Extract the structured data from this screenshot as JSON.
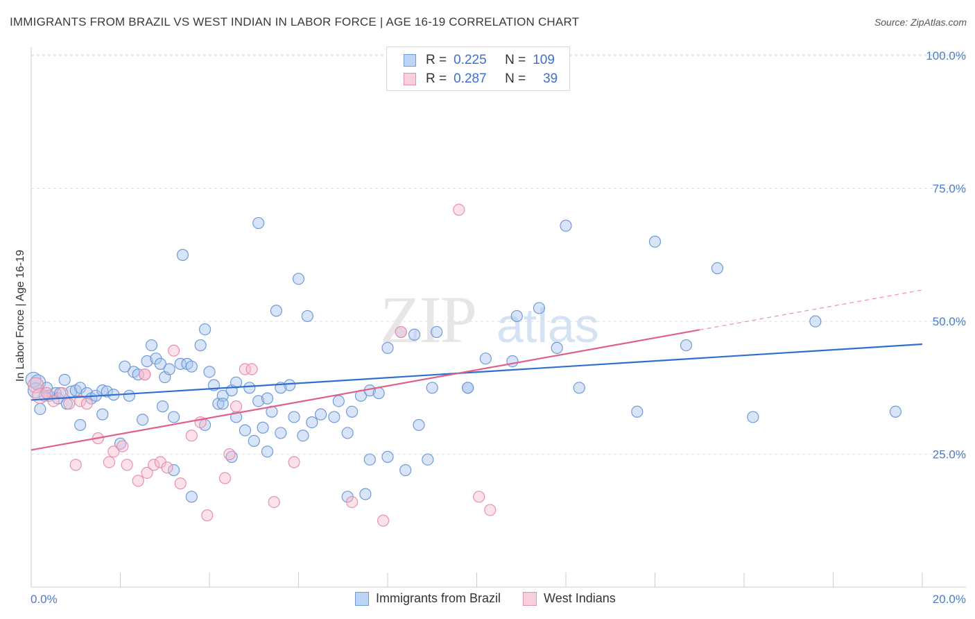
{
  "title": "IMMIGRANTS FROM BRAZIL VS WEST INDIAN IN LABOR FORCE | AGE 16-19 CORRELATION CHART",
  "source": "Source: ZipAtlas.com",
  "watermark": {
    "zip": "ZIP",
    "atlas": "atlas"
  },
  "legend": {
    "r_label": "R =",
    "n_label": "N =",
    "series": [
      {
        "r": "0.225",
        "n": "109"
      },
      {
        "r": "0.287",
        "n": "39"
      }
    ]
  },
  "bottom_legend": [
    "Immigrants from Brazil",
    "West Indians"
  ],
  "colors": {
    "blue_fill": "#a9c6f0",
    "blue_stroke": "#6f9ad8",
    "blue_line": "#2f6fd0",
    "pink_fill": "#f6bccd",
    "pink_stroke": "#e98fad",
    "pink_line": "#e0608a",
    "axis_text": "#4a7cc9"
  },
  "chart_data": {
    "type": "scatter",
    "title": "IMMIGRANTS FROM BRAZIL VS WEST INDIAN IN LABOR FORCE | AGE 16-19 CORRELATION CHART",
    "xlabel": "",
    "ylabel": "In Labor Force | Age 16-19",
    "xlim": [
      0,
      20
    ],
    "ylim": [
      0,
      105
    ],
    "x_tick_labels": [
      "0.0%",
      "20.0%"
    ],
    "y_ticks": [
      25,
      50,
      75,
      100
    ],
    "y_tick_labels": [
      "25.0%",
      "50.0%",
      "75.0%",
      "100.0%"
    ],
    "grid": true,
    "series": [
      {
        "name": "Immigrants from Brazil",
        "color": "blue",
        "trend": {
          "x0": 0,
          "y0": 35.2,
          "x1": 20,
          "y1": 45.7
        },
        "points": [
          [
            0.05,
            39.0
          ],
          [
            0.1,
            37.0
          ],
          [
            0.15,
            38.5
          ],
          [
            0.2,
            33.5
          ],
          [
            0.3,
            36.0
          ],
          [
            0.35,
            37.5
          ],
          [
            0.4,
            36.0
          ],
          [
            0.55,
            36.5
          ],
          [
            0.6,
            35.5
          ],
          [
            0.65,
            36.5
          ],
          [
            0.75,
            39.0
          ],
          [
            0.8,
            34.5
          ],
          [
            0.9,
            36.8
          ],
          [
            1.0,
            37.0
          ],
          [
            1.1,
            37.5
          ],
          [
            1.25,
            36.5
          ],
          [
            1.35,
            35.5
          ],
          [
            1.45,
            36.0
          ],
          [
            1.6,
            37.0
          ],
          [
            1.7,
            36.8
          ],
          [
            1.85,
            36.2
          ],
          [
            2.1,
            41.5
          ],
          [
            2.2,
            36.0
          ],
          [
            2.3,
            40.5
          ],
          [
            2.4,
            40.0
          ],
          [
            2.6,
            42.5
          ],
          [
            2.7,
            45.5
          ],
          [
            2.8,
            43.0
          ],
          [
            2.9,
            42.0
          ],
          [
            3.0,
            39.5
          ],
          [
            3.1,
            41.0
          ],
          [
            3.35,
            42.0
          ],
          [
            3.5,
            42.0
          ],
          [
            3.6,
            41.5
          ],
          [
            3.8,
            45.5
          ],
          [
            3.9,
            48.5
          ],
          [
            4.0,
            40.5
          ],
          [
            4.1,
            38.0
          ],
          [
            4.2,
            34.5
          ],
          [
            4.3,
            36.0
          ],
          [
            4.5,
            37.0
          ],
          [
            4.6,
            38.5
          ],
          [
            4.9,
            37.5
          ],
          [
            5.1,
            35.0
          ],
          [
            5.3,
            35.5
          ],
          [
            5.8,
            38.0
          ],
          [
            5.5,
            52.0
          ],
          [
            6.2,
            51.0
          ],
          [
            6.0,
            58.0
          ],
          [
            5.1,
            68.5
          ],
          [
            3.4,
            62.5
          ],
          [
            1.6,
            32.5
          ],
          [
            1.1,
            30.5
          ],
          [
            2.5,
            31.5
          ],
          [
            2.95,
            34.0
          ],
          [
            3.2,
            32.0
          ],
          [
            3.9,
            30.5
          ],
          [
            4.3,
            34.5
          ],
          [
            4.6,
            32.0
          ],
          [
            4.8,
            29.5
          ],
          [
            5.0,
            27.5
          ],
          [
            5.2,
            30.0
          ],
          [
            5.4,
            33.0
          ],
          [
            5.6,
            29.0
          ],
          [
            5.9,
            32.0
          ],
          [
            6.1,
            28.5
          ],
          [
            6.3,
            31.0
          ],
          [
            6.5,
            32.5
          ],
          [
            6.9,
            35.0
          ],
          [
            7.1,
            29.0
          ],
          [
            7.2,
            33.0
          ],
          [
            7.4,
            36.0
          ],
          [
            7.6,
            24.0
          ],
          [
            8.0,
            24.5
          ],
          [
            8.4,
            22.0
          ],
          [
            8.9,
            24.0
          ],
          [
            8.7,
            30.5
          ],
          [
            9.0,
            37.5
          ],
          [
            9.8,
            37.5
          ],
          [
            10.2,
            43.0
          ],
          [
            10.8,
            42.5
          ],
          [
            10.9,
            51.0
          ],
          [
            11.4,
            52.5
          ],
          [
            11.8,
            45.0
          ],
          [
            12.3,
            37.5
          ],
          [
            13.6,
            33.0
          ],
          [
            14.0,
            65.0
          ],
          [
            14.7,
            45.5
          ],
          [
            15.4,
            60.0
          ],
          [
            16.2,
            32.0
          ],
          [
            17.6,
            50.0
          ],
          [
            19.4,
            33.0
          ],
          [
            12.0,
            68.0
          ],
          [
            8.3,
            48.0
          ],
          [
            8.6,
            47.5
          ],
          [
            9.1,
            48.0
          ],
          [
            7.6,
            37.0
          ],
          [
            7.8,
            36.5
          ],
          [
            5.6,
            37.5
          ],
          [
            3.6,
            17.0
          ],
          [
            4.5,
            24.5
          ],
          [
            5.3,
            25.5
          ],
          [
            3.2,
            22.0
          ],
          [
            2.0,
            27.0
          ],
          [
            7.1,
            17.0
          ],
          [
            7.5,
            17.5
          ],
          [
            9.8,
            37.5
          ],
          [
            8.0,
            45.0
          ],
          [
            6.8,
            32.0
          ]
        ]
      },
      {
        "name": "West Indians",
        "color": "pink",
        "trend": {
          "x0": 0,
          "y0": 25.8,
          "x1": 15.0,
          "y1": 48.4
        },
        "trend_dashed": {
          "x0": 15.0,
          "y0": 48.4,
          "x1": 20,
          "y1": 55.9
        },
        "points": [
          [
            0.1,
            38.0
          ],
          [
            0.2,
            36.0
          ],
          [
            0.35,
            36.5
          ],
          [
            0.5,
            35.0
          ],
          [
            0.7,
            36.5
          ],
          [
            0.85,
            34.5
          ],
          [
            1.0,
            23.0
          ],
          [
            1.1,
            35.0
          ],
          [
            1.25,
            34.5
          ],
          [
            1.5,
            28.0
          ],
          [
            1.75,
            23.5
          ],
          [
            1.85,
            25.5
          ],
          [
            2.05,
            26.5
          ],
          [
            2.15,
            23.0
          ],
          [
            2.4,
            20.0
          ],
          [
            2.55,
            40.0
          ],
          [
            2.6,
            21.5
          ],
          [
            2.75,
            23.0
          ],
          [
            2.9,
            23.5
          ],
          [
            3.05,
            22.5
          ],
          [
            3.2,
            44.5
          ],
          [
            3.35,
            19.5
          ],
          [
            3.6,
            28.5
          ],
          [
            3.8,
            31.0
          ],
          [
            3.95,
            13.5
          ],
          [
            4.35,
            20.5
          ],
          [
            4.45,
            25.0
          ],
          [
            4.6,
            34.0
          ],
          [
            4.8,
            41.0
          ],
          [
            4.95,
            41.0
          ],
          [
            5.45,
            16.0
          ],
          [
            5.9,
            23.5
          ],
          [
            7.2,
            16.0
          ],
          [
            7.9,
            12.5
          ],
          [
            8.3,
            48.0
          ],
          [
            9.6,
            71.0
          ],
          [
            10.05,
            17.0
          ],
          [
            10.3,
            14.5
          ],
          [
            2.55,
            40.0
          ]
        ]
      }
    ]
  }
}
